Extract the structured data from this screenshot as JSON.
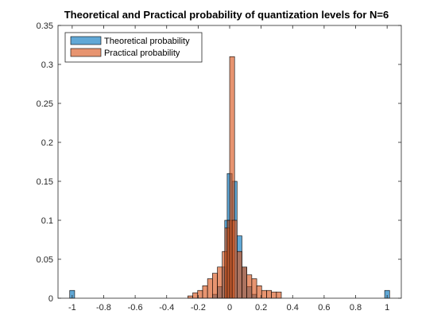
{
  "chart_data": {
    "type": "bar",
    "title": "Theoretical and Practical probability of quantization levels for N=6",
    "xlabel": "",
    "ylabel": "",
    "xlim": [
      -1.09,
      1.09
    ],
    "ylim": [
      0,
      0.35
    ],
    "bin_width": 0.03125,
    "grid": false,
    "legend_position": "top-left",
    "x_tick_labels": [
      "-1",
      "-0.8",
      "-0.6",
      "-0.4",
      "-0.2",
      "0",
      "0.2",
      "0.4",
      "0.6",
      "0.8",
      "1"
    ],
    "y_tick_labels": [
      "0",
      "0.05",
      "0.1",
      "0.15",
      "0.2",
      "0.25",
      "0.3",
      "0.35"
    ],
    "series": [
      {
        "name": "Theoretical probability",
        "color": "#0072BD",
        "points": [
          {
            "x": -1.0,
            "y": 0.01
          },
          {
            "x": -0.09375,
            "y": 0.005
          },
          {
            "x": -0.0625,
            "y": 0.015
          },
          {
            "x": -0.03125,
            "y": 0.04
          },
          {
            "x": -0.015625,
            "y": 0.1
          },
          {
            "x": 0.0,
            "y": 0.16
          },
          {
            "x": 0.03125,
            "y": 0.15
          },
          {
            "x": 0.0625,
            "y": 0.08
          },
          {
            "x": 0.09375,
            "y": 0.04
          },
          {
            "x": 0.125,
            "y": 0.015
          },
          {
            "x": 0.15625,
            "y": 0.005
          },
          {
            "x": 1.0,
            "y": 0.01
          }
        ]
      },
      {
        "name": "Practical probability",
        "color": "#D95319",
        "points": [
          {
            "x": -0.25,
            "y": 0.003
          },
          {
            "x": -0.21875,
            "y": 0.007
          },
          {
            "x": -0.1875,
            "y": 0.01
          },
          {
            "x": -0.15625,
            "y": 0.016
          },
          {
            "x": -0.125,
            "y": 0.025
          },
          {
            "x": -0.09375,
            "y": 0.032
          },
          {
            "x": -0.0625,
            "y": 0.04
          },
          {
            "x": -0.03125,
            "y": 0.06
          },
          {
            "x": -0.015625,
            "y": 0.09
          },
          {
            "x": 0.0,
            "y": 0.1
          },
          {
            "x": 0.015625,
            "y": 0.31
          },
          {
            "x": 0.03125,
            "y": 0.1
          },
          {
            "x": 0.0625,
            "y": 0.06
          },
          {
            "x": 0.09375,
            "y": 0.04
          },
          {
            "x": 0.125,
            "y": 0.03
          },
          {
            "x": 0.15625,
            "y": 0.025
          },
          {
            "x": 0.1875,
            "y": 0.016
          },
          {
            "x": 0.21875,
            "y": 0.01
          },
          {
            "x": 0.25,
            "y": 0.01
          },
          {
            "x": 0.28125,
            "y": 0.008
          },
          {
            "x": 0.3125,
            "y": 0.008
          }
        ]
      }
    ]
  }
}
